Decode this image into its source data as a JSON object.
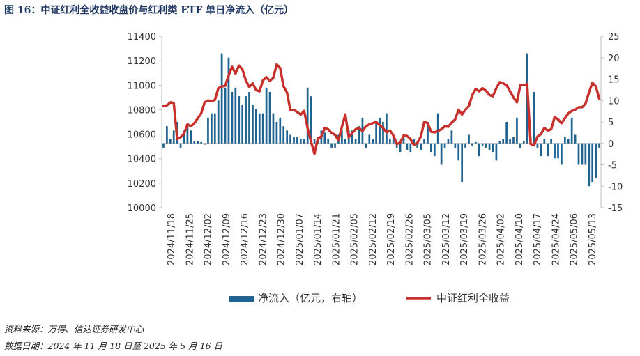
{
  "figure": {
    "title": "图 16：中证红利全收益收盘价与红利类 ETF 单日净流入（亿元）",
    "source": "资料来源：万得、信达证券研发中心",
    "date_range": "数据日期：2024 年 11 月 18 日至 2025 年 5 月 16 日"
  },
  "colors": {
    "bar": "#1f6391",
    "line": "#c8302c",
    "axis": "#bfbfbf"
  },
  "chart_data": {
    "type": "bar+line",
    "x_tick_labels": [
      "2024/11/18",
      "2024/11/25",
      "2024/12/02",
      "2024/12/09",
      "2024/12/16",
      "2024/12/23",
      "2024/12/30",
      "2025/01/07",
      "2025/01/14",
      "2025/01/21",
      "2025/02/05",
      "2025/02/12",
      "2025/02/19",
      "2025/02/26",
      "2025/03/05",
      "2025/03/12",
      "2025/03/19",
      "2025/03/26",
      "2025/04/02",
      "2025/04/10",
      "2025/04/17",
      "2025/04/24",
      "2025/05/06",
      "2025/05/13"
    ],
    "ylim_left": [
      10000,
      11400
    ],
    "yticks_left": [
      10000,
      10200,
      10400,
      10600,
      10800,
      11000,
      11200,
      11400
    ],
    "ylim_right": [
      -15,
      25
    ],
    "yticks_right": [
      -15,
      -10,
      -5,
      0,
      5,
      10,
      15,
      20,
      25
    ],
    "series": [
      {
        "name": "净流入（亿元，右轴）",
        "type": "bar",
        "axis": "right",
        "values": [
          -1,
          4,
          1,
          3,
          5,
          -1,
          3,
          4,
          3,
          0.5,
          0.5,
          0.3,
          -0.3,
          6,
          7,
          7,
          10,
          21,
          13,
          20,
          12,
          13,
          11,
          9,
          11,
          12,
          9,
          8,
          7,
          7,
          13,
          12,
          7,
          5,
          6,
          4,
          3,
          2,
          1.5,
          1.5,
          1,
          1,
          13,
          11,
          1,
          1.5,
          3,
          2.5,
          1,
          -1,
          -1,
          2,
          3,
          1,
          3,
          3,
          1,
          4,
          6,
          -1,
          2,
          1,
          5,
          6,
          5,
          7,
          1,
          2,
          -1,
          -2,
          1.5,
          -1.5,
          -2,
          1,
          -1,
          -1.5,
          1,
          5,
          -2,
          -3,
          7,
          -5,
          -1,
          1,
          3,
          -1,
          -4,
          -9,
          -1,
          2,
          -0.5,
          0.3,
          -3,
          -0.5,
          -1,
          -1.5,
          -2,
          -4,
          0.5,
          1,
          5,
          1,
          1.5,
          6,
          -1,
          0.5,
          21,
          1.5,
          12,
          -1,
          -3,
          1,
          -3,
          1,
          -3.5,
          -3.5,
          -5,
          1.5,
          1,
          6,
          2,
          -5,
          -5,
          -5,
          -10,
          -9,
          -8,
          -1
        ]
      },
      {
        "name": "中证红利全收益",
        "type": "line",
        "axis": "left",
        "values": [
          10830,
          10835,
          10860,
          10855,
          10560,
          10575,
          10605,
          10680,
          10665,
          10690,
          10730,
          10770,
          10860,
          10875,
          10870,
          10880,
          10975,
          10990,
          10995,
          11080,
          11150,
          11095,
          11160,
          11130,
          11040,
          10985,
          11015,
          10960,
          10950,
          11040,
          11065,
          11035,
          11060,
          11170,
          11140,
          10990,
          10940,
          10795,
          10800,
          10780,
          10760,
          10790,
          10650,
          10540,
          10440,
          10565,
          10580,
          10650,
          10640,
          10610,
          10595,
          10550,
          10660,
          10760,
          10575,
          10610,
          10640,
          10650,
          10625,
          10665,
          10680,
          10690,
          10700,
          10675,
          10650,
          10615,
          10630,
          10590,
          10520,
          10530,
          10590,
          10585,
          10560,
          10510,
          10530,
          10580,
          10700,
          10690,
          10620,
          10615,
          10625,
          10640,
          10665,
          10660,
          10695,
          10720,
          10800,
          10760,
          10800,
          10830,
          10920,
          10970,
          10950,
          10975,
          10955,
          10920,
          10910,
          10975,
          11025,
          11015,
          11000,
          10950,
          10900,
          10860,
          11000,
          11000,
          11010,
          10520,
          10510,
          10580,
          10600,
          10650,
          10630,
          10640,
          10740,
          10720,
          10690,
          10730,
          10770,
          10790,
          10800,
          10820,
          10820,
          10850,
          10940,
          11020,
          10990,
          10890
        ]
      }
    ]
  }
}
